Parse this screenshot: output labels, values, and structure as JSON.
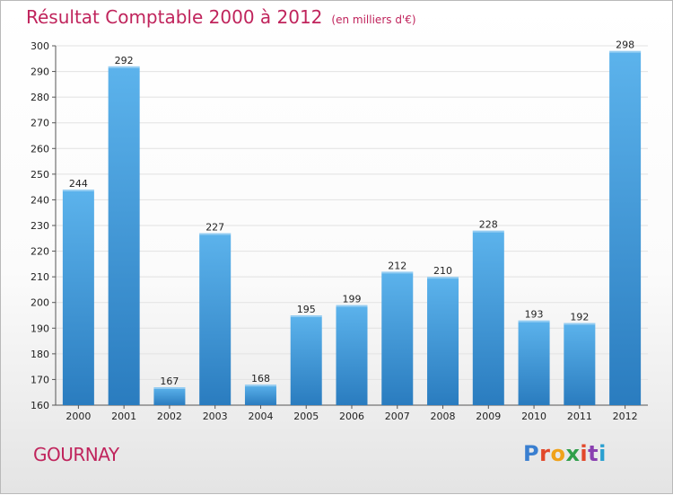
{
  "header": {
    "title": "Résultat Comptable 2000 à 2012",
    "subtitle": "(en milliers d'€)"
  },
  "footer": {
    "place": "GOURNAY",
    "brand": "Proxiti"
  },
  "colors": {
    "title": "#c0245c",
    "bar_top": "#5cb3ec",
    "bar_bottom": "#2a7cbf",
    "brand_letters": [
      "#3a7fd0",
      "#e2482a",
      "#f0a21a",
      "#2f9f4a",
      "#e2482a",
      "#8a3fb0",
      "#2aa0d0"
    ]
  },
  "chart_data": {
    "type": "bar",
    "categories": [
      "2000",
      "2001",
      "2002",
      "2003",
      "2004",
      "2005",
      "2006",
      "2007",
      "2008",
      "2009",
      "2010",
      "2011",
      "2012"
    ],
    "values": [
      244,
      292,
      167,
      227,
      168,
      195,
      199,
      212,
      210,
      228,
      193,
      192,
      298
    ],
    "ylim": [
      160,
      300
    ],
    "yticks": [
      160,
      170,
      180,
      190,
      200,
      210,
      220,
      230,
      240,
      250,
      260,
      270,
      280,
      290,
      300
    ],
    "grid": true
  }
}
